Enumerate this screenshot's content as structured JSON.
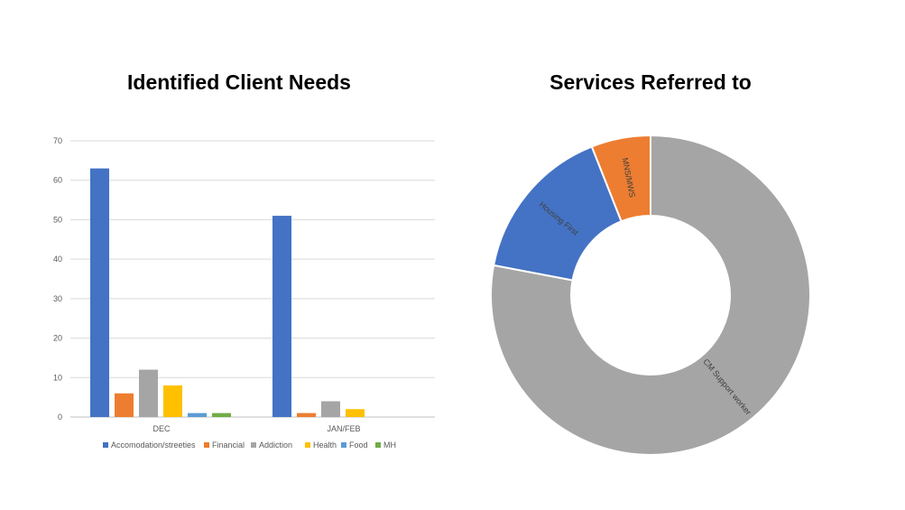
{
  "chart_data": [
    {
      "type": "bar",
      "title": "Identified Client Needs",
      "categories": [
        "DEC",
        "JAN/FEB"
      ],
      "ylim": [
        0,
        70
      ],
      "yticks": [
        0,
        10,
        20,
        30,
        40,
        50,
        60,
        70
      ],
      "grid": true,
      "legend_position": "bottom",
      "series": [
        {
          "name": "Accomodation/streeties",
          "color": "#4472C4",
          "values": [
            63,
            51
          ]
        },
        {
          "name": "Financial",
          "color": "#ED7D31",
          "values": [
            6,
            1
          ]
        },
        {
          "name": "Addiction",
          "color": "#A5A5A5",
          "values": [
            12,
            4
          ]
        },
        {
          "name": "Health",
          "color": "#FFC000",
          "values": [
            8,
            2
          ]
        },
        {
          "name": "Food",
          "color": "#5B9BD5",
          "values": [
            1,
            0
          ]
        },
        {
          "name": "MH",
          "color": "#70AD47",
          "values": [
            1,
            0
          ]
        }
      ]
    },
    {
      "type": "pie",
      "subtype": "doughnut",
      "title": "Services Referred to",
      "slices": [
        {
          "label": "CM Support worker",
          "value": 78,
          "color": "#A5A5A5"
        },
        {
          "label": "Housing First",
          "value": 16,
          "color": "#4472C4"
        },
        {
          "label": "MNS/MWS",
          "value": 6,
          "color": "#ED7D31"
        }
      ]
    }
  ]
}
